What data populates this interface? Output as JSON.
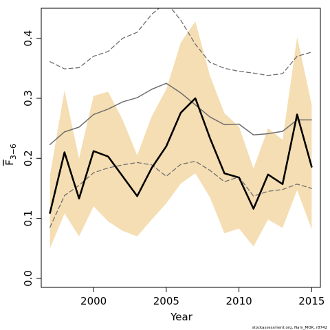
{
  "chart_data": {
    "type": "line",
    "xlabel": "Year",
    "ylabel": "F",
    "ylabel_subscript": "3−6",
    "xlim": [
      1996.4,
      2015.6
    ],
    "ylim": [
      -0.015,
      0.45
    ],
    "x_ticks": [
      2000,
      2005,
      2010,
      2015
    ],
    "x_tick_labels": [
      "2000",
      "2005",
      "2010",
      "2015"
    ],
    "y_ticks": [
      0.0,
      0.1,
      0.2,
      0.3,
      0.4
    ],
    "y_tick_labels": [
      "0.0",
      "0.1",
      "0.2",
      "0.3",
      "0.4"
    ],
    "grid": false,
    "colors": {
      "band": "#f5deb3",
      "estimate": "#000000",
      "reference": "#6e6e6e"
    },
    "x": [
      1997,
      1998,
      1999,
      2000,
      2001,
      2002,
      2003,
      2004,
      2005,
      2006,
      2007,
      2008,
      2009,
      2010,
      2011,
      2012,
      2013,
      2014,
      2015
    ],
    "band": {
      "lower": [
        0.05,
        0.108,
        0.07,
        0.12,
        0.095,
        0.079,
        0.07,
        0.098,
        0.125,
        0.158,
        0.175,
        0.135,
        0.075,
        0.083,
        0.053,
        0.098,
        0.084,
        0.147,
        0.082
      ],
      "upper": [
        0.172,
        0.313,
        0.2,
        0.304,
        0.311,
        0.264,
        0.205,
        0.27,
        0.315,
        0.393,
        0.428,
        0.338,
        0.275,
        0.253,
        0.183,
        0.25,
        0.231,
        0.402,
        0.29
      ]
    },
    "series": [
      {
        "style": "thick",
        "values": [
          0.109,
          0.21,
          0.133,
          0.212,
          0.203,
          0.17,
          0.137,
          0.184,
          0.22,
          0.276,
          0.3,
          0.234,
          0.175,
          0.168,
          0.116,
          0.173,
          0.157,
          0.273,
          0.186
        ]
      },
      {
        "style": "solid",
        "values": [
          0.223,
          0.244,
          0.252,
          0.273,
          0.282,
          0.294,
          0.301,
          0.315,
          0.325,
          0.309,
          0.289,
          0.269,
          0.256,
          0.257,
          0.239,
          0.241,
          0.245,
          0.264,
          0.264
        ]
      },
      {
        "style": "dashed",
        "values": [
          0.361,
          0.349,
          0.351,
          0.37,
          0.378,
          0.4,
          0.41,
          0.44,
          0.46,
          0.43,
          0.39,
          0.36,
          0.35,
          0.345,
          0.342,
          0.338,
          0.341,
          0.37,
          0.377
        ]
      },
      {
        "style": "dashed",
        "values": [
          0.085,
          0.138,
          0.155,
          0.176,
          0.184,
          0.189,
          0.193,
          0.189,
          0.17,
          0.19,
          0.195,
          0.18,
          0.161,
          0.169,
          0.137,
          0.145,
          0.148,
          0.157,
          0.15
        ]
      }
    ],
    "credit": "stockassessment.org, Nam_MOK, r8742"
  }
}
